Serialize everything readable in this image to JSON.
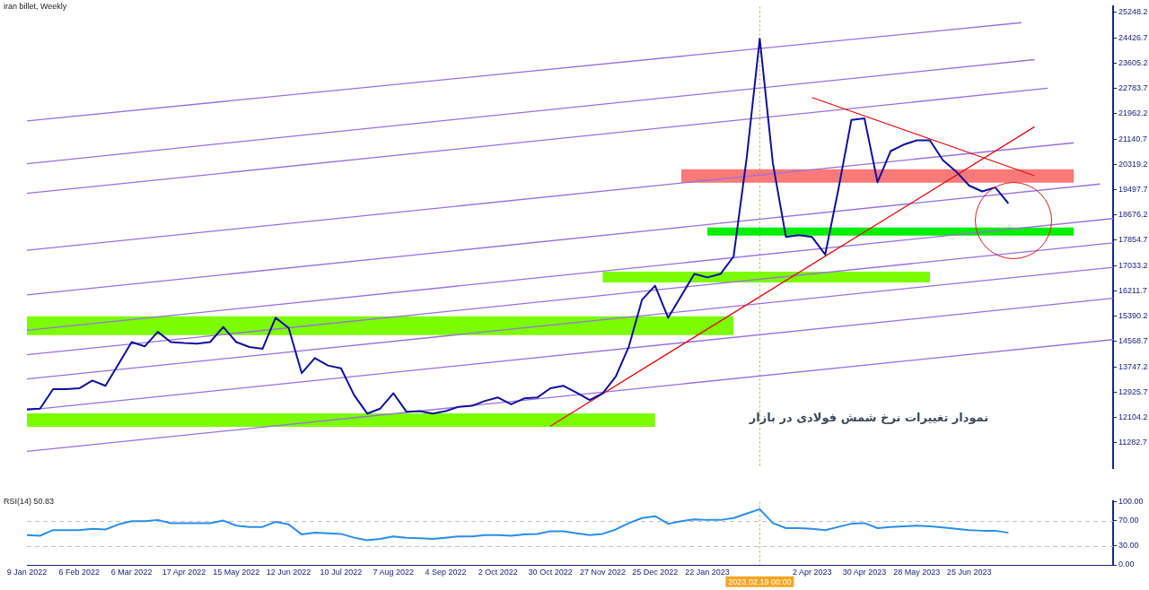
{
  "chart_data": [
    {
      "type": "line",
      "title": "iran billet, Weekly",
      "categories": [
        "9 Jan 2022",
        null,
        null,
        null,
        "6 Feb 2022",
        null,
        null,
        null,
        "6 Mar 2022",
        null,
        null,
        null,
        "17 Apr 2022",
        null,
        null,
        null,
        "15 May 2022",
        null,
        null,
        null,
        "12 Jun 2022",
        null,
        null,
        null,
        "10 Jul 2022",
        null,
        null,
        null,
        "7 Aug 2022",
        null,
        null,
        null,
        "4 Sep 2022",
        null,
        null,
        null,
        "2 Oct 2022",
        null,
        null,
        null,
        "30 Oct 2022",
        null,
        null,
        null,
        "27 Nov 2022",
        null,
        null,
        null,
        "25 Dec 2022",
        null,
        null,
        null,
        "22 Jan 2023",
        null,
        null,
        null,
        "2023.02.19 00:00",
        null,
        null,
        null,
        "2 Apr 2023",
        null,
        null,
        null,
        "30 Apr 2023",
        null,
        null,
        null,
        "28 May 2023",
        null,
        null,
        null,
        "25 Jun 2023",
        null,
        null,
        null,
        null,
        null,
        null,
        null,
        null,
        null,
        null,
        null
      ],
      "series": [
        {
          "type": "line",
          "color": "#10109c",
          "values": [
            12370,
            12390,
            13020,
            13020,
            13050,
            13300,
            13130,
            13840,
            14550,
            14410,
            14880,
            14550,
            14520,
            14500,
            14550,
            15040,
            14550,
            14390,
            14330,
            15340,
            15010,
            13540,
            14030,
            13790,
            13700,
            12830,
            12230,
            12390,
            12890,
            12290,
            12310,
            12230,
            12310,
            12450,
            12480,
            12640,
            12750,
            12530,
            12720,
            12750,
            13050,
            13130,
            12910,
            12670,
            12890,
            13430,
            14410,
            15920,
            16380,
            15340,
            16050,
            16760,
            16650,
            16760,
            17330,
            20530,
            24400,
            20360,
            17960,
            18020,
            17960,
            17390,
            19490,
            21760,
            21810,
            19740,
            20750,
            20960,
            21100,
            21100,
            20450,
            20090,
            19630,
            19440,
            19570,
            19050,
            null,
            null,
            null,
            null,
            null,
            null,
            null,
            null
          ]
        },
        {
          "type": "line",
          "color": "#e01010",
          "values": [
            null,
            null,
            null,
            null,
            null,
            null,
            null,
            null,
            null,
            null,
            null,
            null,
            null,
            null,
            null,
            null,
            null,
            null,
            null,
            null,
            null,
            null,
            null,
            null,
            null,
            null,
            null,
            null,
            null,
            null,
            null,
            null,
            null,
            null,
            null,
            null,
            null,
            null,
            null,
            null,
            11820,
            null,
            null,
            null,
            null,
            null,
            null,
            null,
            null,
            null,
            null,
            null,
            null,
            null,
            null,
            null,
            null,
            null,
            null,
            null,
            null,
            null,
            null,
            null,
            null,
            null,
            null,
            null,
            null,
            null,
            null,
            null,
            null,
            null,
            null,
            null,
            null,
            21540,
            null,
            null,
            null,
            null,
            null,
            null
          ]
        },
        {
          "type": "line",
          "color": "#e01010",
          "values": [
            null,
            null,
            null,
            null,
            null,
            null,
            null,
            null,
            null,
            null,
            null,
            null,
            null,
            null,
            null,
            null,
            null,
            null,
            null,
            null,
            null,
            null,
            null,
            null,
            null,
            null,
            null,
            null,
            null,
            null,
            null,
            null,
            null,
            null,
            null,
            null,
            null,
            null,
            null,
            null,
            null,
            null,
            null,
            null,
            null,
            null,
            null,
            null,
            null,
            null,
            null,
            null,
            null,
            null,
            null,
            null,
            null,
            null,
            null,
            null,
            22490,
            null,
            null,
            null,
            null,
            null,
            null,
            null,
            null,
            null,
            null,
            null,
            null,
            null,
            null,
            null,
            null,
            19950,
            null,
            null,
            null,
            null,
            null,
            null
          ]
        },
        {
          "type": "line",
          "color": "#9b6fe0",
          "values": [
            21730,
            null,
            null,
            null,
            null,
            null,
            null,
            null,
            null,
            null,
            null,
            null,
            null,
            null,
            null,
            null,
            null,
            null,
            null,
            null,
            null,
            null,
            null,
            null,
            null,
            null,
            null,
            null,
            null,
            null,
            null,
            null,
            null,
            null,
            null,
            null,
            null,
            null,
            null,
            null,
            null,
            null,
            null,
            null,
            null,
            null,
            null,
            null,
            null,
            null,
            null,
            null,
            null,
            null,
            null,
            null,
            null,
            null,
            null,
            null,
            null,
            null,
            null,
            null,
            null,
            null,
            null,
            null,
            null,
            null,
            null,
            null,
            null,
            null,
            null,
            null,
            24920,
            null,
            null,
            null,
            null,
            null,
            null,
            null
          ]
        },
        {
          "type": "line",
          "color": "#9b6fe0",
          "values": [
            20340,
            null,
            null,
            null,
            null,
            null,
            null,
            null,
            null,
            null,
            null,
            null,
            null,
            null,
            null,
            null,
            null,
            null,
            null,
            null,
            null,
            null,
            null,
            null,
            null,
            null,
            null,
            null,
            null,
            null,
            null,
            null,
            null,
            null,
            null,
            null,
            null,
            null,
            null,
            null,
            null,
            null,
            null,
            null,
            null,
            null,
            null,
            null,
            null,
            null,
            null,
            null,
            null,
            null,
            null,
            null,
            null,
            null,
            null,
            null,
            null,
            null,
            null,
            null,
            null,
            null,
            null,
            null,
            null,
            null,
            null,
            null,
            null,
            null,
            null,
            null,
            null,
            23720,
            null,
            null,
            null,
            null,
            null,
            null
          ]
        },
        {
          "type": "line",
          "color": "#9b6fe0",
          "values": [
            19380,
            null,
            null,
            null,
            null,
            null,
            null,
            null,
            null,
            null,
            null,
            null,
            null,
            null,
            null,
            null,
            null,
            null,
            null,
            null,
            null,
            null,
            null,
            null,
            null,
            null,
            null,
            null,
            null,
            null,
            null,
            null,
            null,
            null,
            null,
            null,
            null,
            null,
            null,
            null,
            null,
            null,
            null,
            null,
            null,
            null,
            null,
            null,
            null,
            null,
            null,
            null,
            null,
            null,
            null,
            null,
            null,
            null,
            null,
            null,
            null,
            null,
            null,
            null,
            null,
            null,
            null,
            null,
            null,
            null,
            null,
            null,
            null,
            null,
            null,
            null,
            null,
            null,
            22790,
            null,
            null,
            null,
            null,
            null
          ]
        },
        {
          "type": "line",
          "color": "#9b6fe0",
          "values": [
            17530,
            null,
            null,
            null,
            null,
            null,
            null,
            null,
            null,
            null,
            null,
            null,
            null,
            null,
            null,
            null,
            null,
            null,
            null,
            null,
            null,
            null,
            null,
            null,
            null,
            null,
            null,
            null,
            null,
            null,
            null,
            null,
            null,
            null,
            null,
            null,
            null,
            null,
            null,
            null,
            null,
            null,
            null,
            null,
            null,
            null,
            null,
            null,
            null,
            null,
            null,
            null,
            null,
            null,
            null,
            null,
            null,
            null,
            null,
            null,
            null,
            null,
            null,
            null,
            null,
            null,
            null,
            null,
            null,
            null,
            null,
            null,
            null,
            null,
            null,
            null,
            null,
            null,
            null,
            null,
            21020,
            null,
            null,
            null
          ]
        },
        {
          "type": "line",
          "color": "#9b6fe0",
          "values": [
            16080,
            null,
            null,
            null,
            null,
            null,
            null,
            null,
            null,
            null,
            null,
            null,
            null,
            null,
            null,
            null,
            null,
            null,
            null,
            null,
            null,
            null,
            null,
            null,
            null,
            null,
            null,
            null,
            null,
            null,
            null,
            null,
            null,
            null,
            null,
            null,
            null,
            null,
            null,
            null,
            null,
            null,
            null,
            null,
            null,
            null,
            null,
            null,
            null,
            null,
            null,
            null,
            null,
            null,
            null,
            null,
            null,
            null,
            null,
            null,
            null,
            null,
            null,
            null,
            null,
            null,
            null,
            null,
            null,
            null,
            null,
            null,
            null,
            null,
            null,
            null,
            null,
            null,
            null,
            null,
            null,
            null,
            19680,
            null
          ]
        },
        {
          "type": "line",
          "color": "#9b6fe0",
          "values": [
            14930,
            null,
            null,
            null,
            null,
            null,
            null,
            null,
            null,
            null,
            null,
            null,
            null,
            null,
            null,
            null,
            null,
            null,
            null,
            null,
            null,
            null,
            null,
            null,
            null,
            null,
            null,
            null,
            null,
            null,
            null,
            null,
            null,
            null,
            null,
            null,
            null,
            null,
            null,
            null,
            null,
            null,
            null,
            null,
            null,
            null,
            null,
            null,
            null,
            null,
            null,
            null,
            null,
            null,
            null,
            null,
            null,
            null,
            null,
            null,
            null,
            null,
            null,
            null,
            null,
            null,
            null,
            null,
            null,
            null,
            null,
            null,
            null,
            null,
            null,
            null,
            null,
            null,
            null,
            null,
            null,
            null,
            null,
            18560
          ]
        },
        {
          "type": "line",
          "color": "#9b6fe0",
          "values": [
            14140,
            null,
            null,
            null,
            null,
            null,
            null,
            null,
            null,
            null,
            null,
            null,
            null,
            null,
            null,
            null,
            null,
            null,
            null,
            null,
            null,
            null,
            null,
            null,
            null,
            null,
            null,
            null,
            null,
            null,
            null,
            null,
            null,
            null,
            null,
            null,
            null,
            null,
            null,
            null,
            null,
            null,
            null,
            null,
            null,
            null,
            null,
            null,
            null,
            null,
            null,
            null,
            null,
            null,
            null,
            null,
            null,
            null,
            null,
            null,
            null,
            null,
            null,
            null,
            null,
            null,
            null,
            null,
            null,
            null,
            null,
            null,
            null,
            null,
            null,
            null,
            null,
            null,
            null,
            null,
            null,
            null,
            null,
            17770
          ]
        },
        {
          "type": "line",
          "color": "#9b6fe0",
          "values": [
            13350,
            null,
            null,
            null,
            null,
            null,
            null,
            null,
            null,
            null,
            null,
            null,
            null,
            null,
            null,
            null,
            null,
            null,
            null,
            null,
            null,
            null,
            null,
            null,
            null,
            null,
            null,
            null,
            null,
            null,
            null,
            null,
            null,
            null,
            null,
            null,
            null,
            null,
            null,
            null,
            null,
            null,
            null,
            null,
            null,
            null,
            null,
            null,
            null,
            null,
            null,
            null,
            null,
            null,
            null,
            null,
            null,
            null,
            null,
            null,
            null,
            null,
            null,
            null,
            null,
            null,
            null,
            null,
            null,
            null,
            null,
            null,
            null,
            null,
            null,
            null,
            null,
            null,
            null,
            null,
            null,
            null,
            null,
            16980
          ]
        },
        {
          "type": "line",
          "color": "#9b6fe0",
          "values": [
            12340,
            null,
            null,
            null,
            null,
            null,
            null,
            null,
            null,
            null,
            null,
            null,
            null,
            null,
            null,
            null,
            null,
            null,
            null,
            null,
            null,
            null,
            null,
            null,
            null,
            null,
            null,
            null,
            null,
            null,
            null,
            null,
            null,
            null,
            null,
            null,
            null,
            null,
            null,
            null,
            null,
            null,
            null,
            null,
            null,
            null,
            null,
            null,
            null,
            null,
            null,
            null,
            null,
            null,
            null,
            null,
            null,
            null,
            null,
            null,
            null,
            null,
            null,
            null,
            null,
            null,
            null,
            null,
            null,
            null,
            null,
            null,
            null,
            null,
            null,
            null,
            null,
            null,
            null,
            null,
            null,
            null,
            null,
            15970
          ]
        },
        {
          "type": "line",
          "color": "#9b6fe0",
          "values": [
            11000,
            null,
            null,
            null,
            null,
            null,
            null,
            null,
            null,
            null,
            null,
            null,
            null,
            null,
            null,
            null,
            null,
            null,
            null,
            null,
            null,
            null,
            null,
            null,
            null,
            null,
            null,
            null,
            null,
            null,
            null,
            null,
            null,
            null,
            null,
            null,
            null,
            null,
            null,
            null,
            null,
            null,
            null,
            null,
            null,
            null,
            null,
            null,
            null,
            null,
            null,
            null,
            null,
            null,
            null,
            null,
            null,
            null,
            null,
            null,
            null,
            null,
            null,
            null,
            null,
            null,
            null,
            null,
            null,
            null,
            null,
            null,
            null,
            null,
            null,
            null,
            null,
            null,
            null,
            null,
            null,
            null,
            null,
            14630
          ]
        },
        {
          "type": "line",
          "color": "#7cfc00",
          "values": [
            15080,
            null,
            null,
            null,
            null,
            null,
            null,
            null,
            null,
            null,
            null,
            null,
            null,
            null,
            null,
            null,
            null,
            null,
            null,
            null,
            null,
            null,
            null,
            null,
            null,
            null,
            null,
            null,
            null,
            null,
            null,
            null,
            null,
            null,
            null,
            null,
            null,
            null,
            null,
            null,
            null,
            null,
            null,
            null,
            null,
            null,
            null,
            null,
            null,
            null,
            null,
            null,
            null,
            null,
            15080,
            null,
            null,
            null,
            null,
            null,
            null,
            null,
            null,
            null,
            null,
            null,
            null,
            null,
            null,
            null,
            null,
            null,
            null,
            null,
            null,
            null,
            null,
            null,
            null,
            null,
            null,
            null,
            null,
            null
          ]
        },
        {
          "type": "line",
          "color": "#7cfc00",
          "values": [
            12020,
            null,
            null,
            null,
            null,
            null,
            null,
            null,
            null,
            null,
            null,
            null,
            null,
            null,
            null,
            null,
            null,
            null,
            null,
            null,
            null,
            null,
            null,
            null,
            null,
            null,
            null,
            null,
            null,
            null,
            null,
            null,
            null,
            null,
            null,
            null,
            null,
            null,
            null,
            null,
            null,
            null,
            null,
            null,
            null,
            null,
            null,
            null,
            12020,
            null,
            null,
            null,
            null,
            null,
            null,
            null,
            null,
            null,
            null,
            null,
            null,
            null,
            null,
            null,
            null,
            null,
            null,
            null,
            null,
            null,
            null,
            null,
            null,
            null,
            null,
            null,
            null,
            null,
            null,
            null,
            null,
            null,
            null,
            null
          ]
        },
        {
          "type": "line",
          "color": "#7cfc00",
          "values": [
            null,
            null,
            null,
            null,
            null,
            null,
            null,
            null,
            null,
            null,
            null,
            null,
            null,
            null,
            null,
            null,
            null,
            null,
            null,
            null,
            null,
            null,
            null,
            null,
            null,
            null,
            null,
            null,
            null,
            null,
            null,
            null,
            null,
            null,
            null,
            null,
            null,
            null,
            null,
            null,
            null,
            null,
            null,
            null,
            16660,
            null,
            null,
            null,
            null,
            null,
            null,
            null,
            null,
            null,
            null,
            null,
            null,
            null,
            null,
            null,
            null,
            null,
            null,
            null,
            null,
            null,
            null,
            null,
            null,
            16660,
            null,
            null,
            null,
            null,
            null,
            null,
            null,
            null,
            null,
            null,
            null,
            null,
            null,
            null
          ]
        },
        {
          "type": "line",
          "color": "#00ee00",
          "values": [
            null,
            null,
            null,
            null,
            null,
            null,
            null,
            null,
            null,
            null,
            null,
            null,
            null,
            null,
            null,
            null,
            null,
            null,
            null,
            null,
            null,
            null,
            null,
            null,
            null,
            null,
            null,
            null,
            null,
            null,
            null,
            null,
            null,
            null,
            null,
            null,
            null,
            null,
            null,
            null,
            null,
            null,
            null,
            null,
            null,
            null,
            null,
            null,
            null,
            null,
            null,
            null,
            18140,
            null,
            null,
            null,
            null,
            null,
            null,
            null,
            null,
            null,
            null,
            null,
            null,
            null,
            null,
            null,
            null,
            null,
            null,
            null,
            null,
            null,
            null,
            null,
            null,
            null,
            null,
            null,
            18140,
            null,
            null,
            null
          ]
        },
        {
          "type": "line",
          "color": "#fa7a7a",
          "values": [
            null,
            null,
            null,
            null,
            null,
            null,
            null,
            null,
            null,
            null,
            null,
            null,
            null,
            null,
            null,
            null,
            null,
            null,
            null,
            null,
            null,
            null,
            null,
            null,
            null,
            null,
            null,
            null,
            null,
            null,
            null,
            null,
            null,
            null,
            null,
            null,
            null,
            null,
            null,
            null,
            null,
            null,
            null,
            null,
            null,
            null,
            null,
            null,
            null,
            null,
            19940,
            null,
            null,
            null,
            null,
            null,
            null,
            null,
            null,
            null,
            null,
            null,
            null,
            null,
            null,
            null,
            null,
            null,
            null,
            null,
            null,
            null,
            null,
            null,
            null,
            null,
            null,
            null,
            null,
            null,
            19940,
            null,
            null,
            null
          ]
        }
      ],
      "ylim": [
        10460,
        25440
      ],
      "yticks": [
        11282.7,
        12104.2,
        12925.7,
        13747.2,
        14568.7,
        15390.2,
        16211.7,
        17033.2,
        17854.7,
        18676.2,
        19497.7,
        20319.2,
        21140.7,
        21962.2,
        22783.7,
        23605.2,
        24426.7,
        25248.2
      ],
      "ref_lines": [
        {
          "axis": "x",
          "value": "2023.02.19 00:00",
          "color": "#c8a030",
          "line_style": "dotted"
        }
      ],
      "annotations": [
        "نمودار تغییرات نرخ شمش فولادی در بازار"
      ],
      "tick_labels": "y"
    },
    {
      "type": "line",
      "title": "RSI(14) 50.83",
      "categories": [
        "9 Jan 2022",
        null,
        null,
        null,
        "6 Feb 2022",
        null,
        null,
        null,
        "6 Mar 2022",
        null,
        null,
        null,
        "17 Apr 2022",
        null,
        null,
        null,
        "15 May 2022",
        null,
        null,
        null,
        "12 Jun 2022",
        null,
        null,
        null,
        "10 Jul 2022",
        null,
        null,
        null,
        "7 Aug 2022",
        null,
        null,
        null,
        "4 Sep 2022",
        null,
        null,
        null,
        "2 Oct 2022",
        null,
        null,
        null,
        "30 Oct 2022",
        null,
        null,
        null,
        "27 Nov 2022",
        null,
        null,
        null,
        "25 Dec 2022",
        null,
        null,
        null,
        "22 Jan 2023",
        null,
        null,
        null,
        "2023.02.19 00:00",
        null,
        null,
        null,
        "2 Apr 2023",
        null,
        null,
        null,
        "30 Apr 2023",
        null,
        null,
        null,
        "28 May 2023",
        null,
        null,
        null,
        "25 Jun 2023",
        null,
        null,
        null,
        null,
        null,
        null,
        null,
        null,
        null,
        null,
        null
      ],
      "series": [
        {
          "color": "#2a8ee8",
          "values": [
            47,
            46,
            55,
            55,
            55,
            57,
            56,
            64,
            69,
            69,
            71,
            66,
            66,
            66,
            66,
            70,
            62,
            60,
            60,
            68,
            64,
            48,
            51,
            50,
            49,
            43,
            39,
            41,
            45,
            43,
            42,
            41,
            43,
            45,
            45,
            47,
            47,
            46,
            48,
            49,
            53,
            53,
            50,
            47,
            49,
            56,
            66,
            74,
            77,
            65,
            69,
            72,
            71,
            71,
            74,
            81,
            88,
            66,
            58,
            58,
            57,
            55,
            60,
            65,
            66,
            58,
            60,
            61,
            62,
            61,
            59,
            57,
            55,
            54,
            54,
            50.83,
            null,
            null,
            null,
            null,
            null,
            null,
            null,
            null
          ]
        }
      ],
      "ylim": [
        0,
        100
      ],
      "yticks": [
        {
          "value": 0,
          "label": "0.00"
        },
        {
          "value": 30,
          "label": "30.00"
        },
        {
          "value": 70,
          "label": "70.00"
        },
        {
          "value": 100,
          "label": "100.00"
        }
      ],
      "ref_lines": [
        {
          "axis": "x",
          "value": "2023.02.19 00:00",
          "color": "#c8a030",
          "line_style": "dotted"
        },
        {
          "axis": "y",
          "value": 30,
          "color": "#c0c0c0",
          "line_style": "dashed"
        },
        {
          "axis": "y",
          "value": 70,
          "color": "#c0c0c0",
          "line_style": "dashed"
        }
      ]
    }
  ]
}
